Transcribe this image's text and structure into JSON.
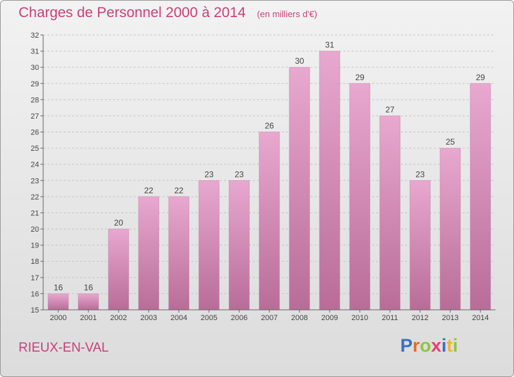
{
  "header": {
    "title": "Charges de Personnel 2000 à 2014",
    "unit": "(en milliers d'€)"
  },
  "footer": {
    "commune": "RIEUX-EN-VAL",
    "logo": [
      {
        "char": "P",
        "color": "#3a6fc4"
      },
      {
        "char": "r",
        "color": "#e8692a"
      },
      {
        "char": "o",
        "color": "#8cc63f"
      },
      {
        "char": "x",
        "color": "#e83f6f"
      },
      {
        "char": "i",
        "color": "#3a6fc4"
      },
      {
        "char": "t",
        "color": "#f2b52a"
      },
      {
        "char": "i",
        "color": "#8cc63f"
      }
    ]
  },
  "colors": {
    "bar_top": "#e8a8cf",
    "bar_bottom": "#b86d98",
    "text": "#c8407a"
  },
  "chart_data": {
    "type": "bar",
    "categories": [
      "2000",
      "2001",
      "2002",
      "2003",
      "2004",
      "2005",
      "2006",
      "2007",
      "2008",
      "2009",
      "2010",
      "2011",
      "2012",
      "2013",
      "2014"
    ],
    "values": [
      16,
      16,
      20,
      22,
      22,
      23,
      23,
      26,
      30,
      31,
      29,
      27,
      23,
      25,
      29
    ],
    "ylim": [
      15,
      32
    ],
    "yticks": [
      15,
      16,
      17,
      18,
      19,
      20,
      21,
      22,
      23,
      24,
      25,
      26,
      27,
      28,
      29,
      30,
      31,
      32
    ],
    "grid": true,
    "legend": "none",
    "title": "Charges de Personnel 2000 à 2014",
    "xlabel": "",
    "ylabel": ""
  }
}
